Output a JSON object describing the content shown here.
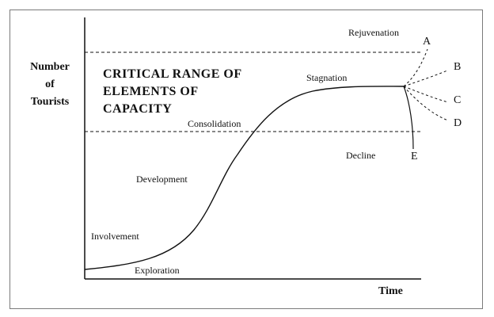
{
  "y_axis_label": [
    "Number",
    "of",
    "Tourists"
  ],
  "x_axis_label": "Time",
  "critical_range_label": [
    "CRITICAL RANGE OF",
    "ELEMENTS OF",
    "CAPACITY"
  ],
  "stages": {
    "exploration": "Exploration",
    "involvement": "Involvement",
    "development": "Development",
    "consolidation": "Consolidation",
    "stagnation": "Stagnation",
    "rejuvenation": "Rejuvenation",
    "decline": "Decline"
  },
  "branches": [
    "A",
    "B",
    "C",
    "D",
    "E"
  ]
}
